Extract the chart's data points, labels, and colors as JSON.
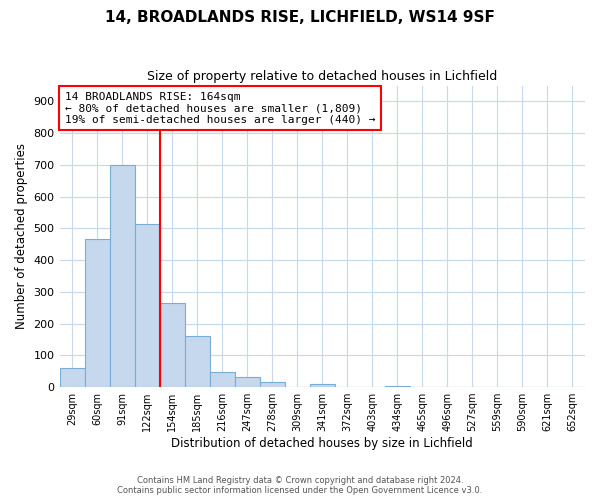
{
  "title": "14, BROADLANDS RISE, LICHFIELD, WS14 9SF",
  "subtitle": "Size of property relative to detached houses in Lichfield",
  "xlabel": "Distribution of detached houses by size in Lichfield",
  "ylabel": "Number of detached properties",
  "bar_labels": [
    "29sqm",
    "60sqm",
    "91sqm",
    "122sqm",
    "154sqm",
    "185sqm",
    "216sqm",
    "247sqm",
    "278sqm",
    "309sqm",
    "341sqm",
    "372sqm",
    "403sqm",
    "434sqm",
    "465sqm",
    "496sqm",
    "527sqm",
    "559sqm",
    "590sqm",
    "621sqm",
    "652sqm"
  ],
  "bar_values": [
    60,
    465,
    700,
    515,
    265,
    160,
    47,
    33,
    15,
    0,
    10,
    0,
    0,
    4,
    0,
    0,
    0,
    0,
    0,
    0,
    0
  ],
  "bar_color": "#c5d8ed",
  "bar_edge_color": "#7aadd4",
  "ylim": [
    0,
    950
  ],
  "yticks": [
    0,
    100,
    200,
    300,
    400,
    500,
    600,
    700,
    800,
    900
  ],
  "property_line_bar_index": 4,
  "annotation_title": "14 BROADLANDS RISE: 164sqm",
  "annotation_line1": "← 80% of detached houses are smaller (1,809)",
  "annotation_line2": "19% of semi-detached houses are larger (440) →",
  "footer_line1": "Contains HM Land Registry data © Crown copyright and database right 2024.",
  "footer_line2": "Contains public sector information licensed under the Open Government Licence v3.0.",
  "background_color": "#ffffff",
  "grid_color": "#c8d8e8"
}
